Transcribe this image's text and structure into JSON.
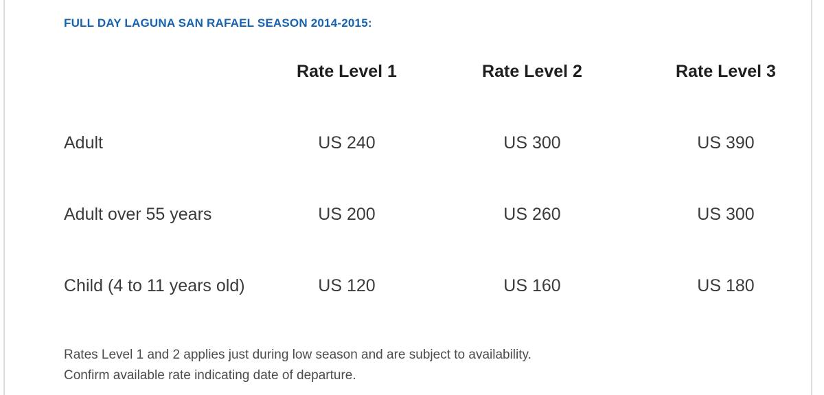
{
  "title": "FULL DAY LAGUNA SAN RAFAEL SEASON 2014-2015:",
  "table": {
    "columns": [
      "Rate Level 1",
      "Rate Level 2",
      "Rate Level 3"
    ],
    "rows": [
      {
        "label": "Adult",
        "values": [
          "US 240",
          "US 300",
          "US 390"
        ]
      },
      {
        "label": "Adult over 55 years",
        "values": [
          "US 200",
          "US 260",
          "US 300"
        ]
      },
      {
        "label": "Child (4 to 11 years old)",
        "values": [
          "US 120",
          "US 160",
          "US 180"
        ]
      }
    ]
  },
  "notes": [
    "Rates Level 1 and 2 applies just during low season and are subject to availability.",
    "Confirm available rate indicating date of departure."
  ],
  "colors": {
    "title_blue": "#1563b2",
    "border_gray": "#dcdcdc",
    "body_text": "#3b3b3b"
  }
}
